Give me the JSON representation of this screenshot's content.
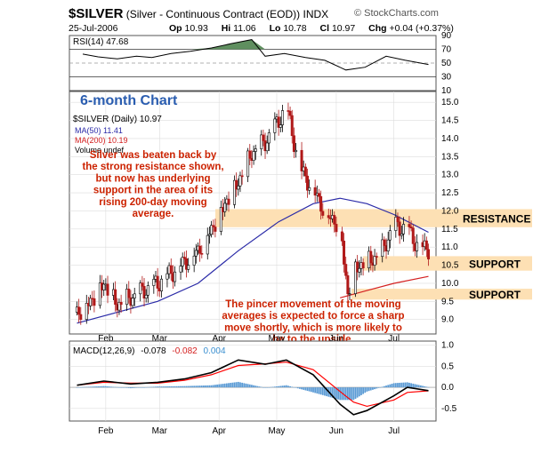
{
  "header": {
    "symbol": "$SILVER",
    "description": "(Silver - Continuous Contract (EOD))",
    "exchange": "INDX",
    "brand": "© StockCharts.com",
    "date": "25-Jul-2006",
    "quote": {
      "open_label": "Op",
      "open": "10.93",
      "high_label": "Hi",
      "high": "11.06",
      "low_label": "Lo",
      "low": "10.78",
      "close_label": "Cl",
      "close": "10.97",
      "change_label": "Chg",
      "change": "+0.04 (+0.37%)"
    }
  },
  "colors": {
    "price_candle": "#000000",
    "ma50": "#2b2ba8",
    "ma200": "#d42020",
    "annotation_text": "#cc2200",
    "band": "#fde0b4",
    "rsi_fill": "#5f8f5f",
    "macd_line": "#000000",
    "macd_signal": "#ff0000",
    "macd_hist": "#5b9bd5"
  },
  "chart_data": [
    {
      "type": "line",
      "panel": "RSI",
      "legend": "RSI(14) 47.68",
      "ylim": [
        10,
        90
      ],
      "yticks": [
        "90",
        "70",
        "50",
        "30",
        "10"
      ],
      "reference_lines": [
        70,
        50,
        30
      ],
      "series": [
        {
          "name": "RSI(14)",
          "x": [
            "Jan 26",
            "Feb 3",
            "Feb 13",
            "Feb 23",
            "Mar 3",
            "Mar 13",
            "Mar 23",
            "Apr 3",
            "Apr 13",
            "Apr 24",
            "May 1",
            "May 11",
            "May 22",
            "Jun 1",
            "Jun 12",
            "Jun 22",
            "Jul 3",
            "Jul 13",
            "Jul 25"
          ],
          "values": [
            63,
            59,
            56,
            60,
            58,
            64,
            67,
            72,
            78,
            84,
            60,
            64,
            58,
            54,
            40,
            44,
            60,
            54,
            48
          ]
        }
      ]
    },
    {
      "type": "line",
      "panel": "Price",
      "title": "6-month Chart",
      "legend": [
        "$SILVER (Daily) 10.97",
        "MA(50) 11.41",
        "MA(200) 10.19",
        "Volume undef"
      ],
      "xlabel": "",
      "ylabel": "",
      "categories": [
        "Feb",
        "Mar",
        "Apr",
        "May",
        "Jun",
        "Jul"
      ],
      "ylim": [
        8.6,
        15.3
      ],
      "yticks": [
        "15.0",
        "14.5",
        "14.0",
        "13.5",
        "13.0",
        "12.5",
        "12.0",
        "11.5",
        "11.0",
        "10.5",
        "10.0",
        "9.5",
        "9.0"
      ],
      "bands": [
        {
          "label": "RESISTANCE",
          "from": 11.55,
          "to": 12.05
        },
        {
          "label": "SUPPORT",
          "from": 10.35,
          "to": 10.75
        },
        {
          "label": "SUPPORT",
          "from": 9.55,
          "to": 9.85
        }
      ],
      "annotations": [
        "Silver was beaten back by the strong resistance shown, but now has underlying support in the area of its rising 200-day moving average.",
        "The pincer movement of the moving averages is expected to force a sharp move shortly, which is more likely to be to the upside."
      ],
      "series": [
        {
          "name": "$SILVER (Daily)",
          "x": [
            "Jan 23",
            "Jan 30",
            "Feb 6",
            "Feb 13",
            "Feb 20",
            "Feb 27",
            "Mar 6",
            "Mar 13",
            "Mar 20",
            "Mar 27",
            "Apr 3",
            "Apr 10",
            "Apr 17",
            "Apr 24",
            "May 1",
            "May 8",
            "May 12",
            "May 19",
            "May 26",
            "Jun 2",
            "Jun 9",
            "Jun 13",
            "Jun 16",
            "Jun 23",
            "Jun 30",
            "Jul 7",
            "Jul 14",
            "Jul 20",
            "Jul 25"
          ],
          "values": [
            9.2,
            9.5,
            10.0,
            9.4,
            9.6,
            9.8,
            10.0,
            10.3,
            10.6,
            10.9,
            11.5,
            12.2,
            12.8,
            13.6,
            13.9,
            14.5,
            14.9,
            13.2,
            12.6,
            11.9,
            11.6,
            9.7,
            10.4,
            10.6,
            10.8,
            11.6,
            11.5,
            11.0,
            10.97
          ]
        },
        {
          "name": "MA(50)",
          "x": [
            "Jan 23",
            "Feb 13",
            "Mar 6",
            "Mar 27",
            "Apr 17",
            "May 8",
            "May 26",
            "Jun 9",
            "Jun 23",
            "Jul 7",
            "Jul 25"
          ],
          "values": [
            8.9,
            9.2,
            9.5,
            10.0,
            10.9,
            11.7,
            12.2,
            12.35,
            12.2,
            11.9,
            11.41
          ]
        },
        {
          "name": "MA(200)",
          "x": [
            "Jun 9",
            "Jun 23",
            "Jul 7",
            "Jul 25"
          ],
          "values": [
            9.6,
            9.8,
            10.0,
            10.19
          ]
        }
      ]
    },
    {
      "type": "line",
      "panel": "MACD",
      "legend": {
        "label": "MACD(12,26,9)",
        "macd": "-0.078",
        "signal": "-0.082",
        "hist": "0.004"
      },
      "ylim": [
        -0.8,
        1.1
      ],
      "yticks": [
        "1.0",
        "0.5",
        "0.0",
        "-0.5"
      ],
      "xticks": [
        "Feb",
        "Mar",
        "Apr",
        "May",
        "Jun",
        "Jul"
      ],
      "series": [
        {
          "name": "MACD",
          "x": [
            "Jan 23",
            "Feb 6",
            "Feb 20",
            "Mar 6",
            "Mar 20",
            "Apr 3",
            "Apr 17",
            "May 1",
            "May 12",
            "May 26",
            "Jun 9",
            "Jun 16",
            "Jun 23",
            "Jul 7",
            "Jul 14",
            "Jul 25"
          ],
          "values": [
            0.05,
            0.15,
            0.08,
            0.12,
            0.2,
            0.35,
            0.65,
            0.55,
            0.65,
            0.3,
            -0.4,
            -0.65,
            -0.55,
            -0.2,
            0.0,
            -0.078
          ]
        },
        {
          "name": "Signal",
          "x": [
            "Jan 23",
            "Feb 6",
            "Feb 20",
            "Mar 6",
            "Mar 20",
            "Apr 3",
            "Apr 17",
            "May 1",
            "May 12",
            "May 26",
            "Jun 9",
            "Jun 16",
            "Jun 23",
            "Jul 7",
            "Jul 14",
            "Jul 25"
          ],
          "values": [
            0.05,
            0.12,
            0.1,
            0.1,
            0.17,
            0.3,
            0.52,
            0.56,
            0.6,
            0.42,
            -0.1,
            -0.35,
            -0.45,
            -0.3,
            -0.12,
            -0.082
          ]
        },
        {
          "name": "Histogram",
          "x": [
            "Jan 23",
            "Feb 6",
            "Feb 20",
            "Mar 6",
            "Mar 20",
            "Apr 3",
            "Apr 17",
            "May 1",
            "May 12",
            "May 26",
            "Jun 9",
            "Jun 16",
            "Jun 23",
            "Jul 7",
            "Jul 14",
            "Jul 25"
          ],
          "values": [
            0.0,
            0.03,
            -0.02,
            0.02,
            0.03,
            0.05,
            0.13,
            -0.01,
            0.05,
            -0.12,
            -0.3,
            -0.3,
            -0.1,
            0.1,
            0.12,
            0.004
          ]
        }
      ]
    }
  ]
}
